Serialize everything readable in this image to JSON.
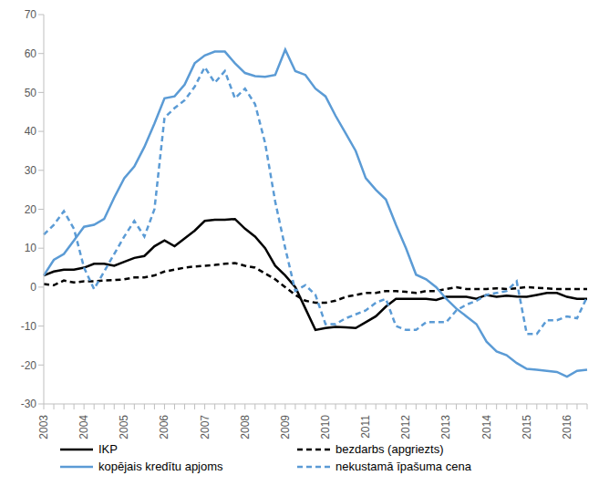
{
  "chart_data": {
    "type": "line",
    "categories": [
      "2003",
      null,
      null,
      null,
      "2004",
      null,
      null,
      null,
      "2005",
      null,
      null,
      null,
      "2006",
      null,
      null,
      null,
      "2007",
      null,
      null,
      null,
      "2008",
      null,
      null,
      null,
      "2009",
      null,
      null,
      null,
      "2010",
      null,
      null,
      null,
      "2011",
      null,
      null,
      null,
      "2012",
      null,
      null,
      null,
      "2013",
      null,
      null,
      null,
      "2014",
      null,
      null,
      null,
      "2015",
      null,
      null,
      null,
      "2016",
      null,
      null
    ],
    "series": [
      {
        "name": "IKP",
        "color": "#000000",
        "line_style": "solid",
        "values": [
          3,
          4,
          4.5,
          4.5,
          5,
          6,
          6,
          5.5,
          6.5,
          7.5,
          8,
          10.5,
          12,
          10.5,
          12.5,
          14.5,
          17,
          17.3,
          17.3,
          17.5,
          15,
          13,
          10,
          5.5,
          3,
          0,
          -5.5,
          -11,
          -10.5,
          -10.2,
          -10.3,
          -10.5,
          -9,
          -7.5,
          -5,
          -3,
          -3,
          -3,
          -3,
          -3.3,
          -2.5,
          -2.5,
          -2.5,
          -3,
          -2,
          -2.5,
          -2.2,
          -2.4,
          -2.5,
          -2,
          -1.5,
          -1.5,
          -2.5,
          -3,
          -3
        ]
      },
      {
        "name": "bezdarbs (apgriezts)",
        "color": "#000000",
        "line_style": "dashed",
        "values": [
          0.8,
          0.5,
          1.7,
          1.2,
          1.5,
          1.5,
          1.7,
          1.8,
          2,
          2.5,
          2.5,
          3,
          4,
          4.5,
          5,
          5.3,
          5.5,
          5.7,
          6,
          6.2,
          5.5,
          5,
          3.5,
          2,
          0,
          -2,
          -3.5,
          -4,
          -4,
          -3.5,
          -2.5,
          -2,
          -1.5,
          -1.5,
          -1,
          -1,
          -1.2,
          -1.5,
          -1,
          -1,
          -0.5,
          0,
          -0.5,
          -0.5,
          -0.5,
          -0.3,
          -0.5,
          -0.3,
          0,
          -0.2,
          -0.3,
          -0.5,
          -0.5,
          -0.5,
          -0.5
        ]
      },
      {
        "name": "kopējais kredītu apjoms",
        "color": "#5b9bd5",
        "line_style": "solid",
        "values": [
          3,
          7,
          8.5,
          12,
          15.5,
          16,
          17.5,
          23,
          28,
          31,
          36,
          42,
          48.5,
          49,
          52,
          57.5,
          59.5,
          60.5,
          60.5,
          57.5,
          55,
          54.2,
          54,
          54.5,
          61,
          55.5,
          54.5,
          51,
          49,
          44,
          39.5,
          35,
          28,
          25,
          22.5,
          16,
          10,
          3.2,
          2,
          0,
          -3,
          -5.5,
          -7.5,
          -9.5,
          -14,
          -16.5,
          -17.5,
          -19.5,
          -21,
          -21.2,
          -21.5,
          -21.8,
          -23,
          -21.5,
          -21.2
        ]
      },
      {
        "name": "nekustamā īpašuma cena",
        "color": "#5b9bd5",
        "line_style": "dashed",
        "values": [
          13.5,
          16,
          19.5,
          15,
          5,
          -0.5,
          4,
          8.5,
          13,
          17,
          13,
          20,
          43.5,
          46,
          48,
          51.5,
          56.5,
          52.5,
          55.5,
          48.5,
          51,
          47,
          37,
          22,
          10,
          -1,
          0.5,
          -2,
          -9.5,
          -9.5,
          -8,
          -7,
          -6,
          -4,
          -3,
          -10,
          -11,
          -11,
          -9,
          -9,
          -9,
          -6,
          -4.5,
          -3.5,
          -2,
          -1.5,
          -1,
          1.5,
          -12,
          -12,
          -8.5,
          -8.5,
          -7.5,
          -8,
          -2.5
        ]
      }
    ],
    "ylim": [
      -30,
      70
    ],
    "yticks": [
      -30,
      -20,
      -10,
      0,
      10,
      20,
      30,
      40,
      50,
      60,
      70
    ],
    "grid": false,
    "legend": "bottom"
  }
}
